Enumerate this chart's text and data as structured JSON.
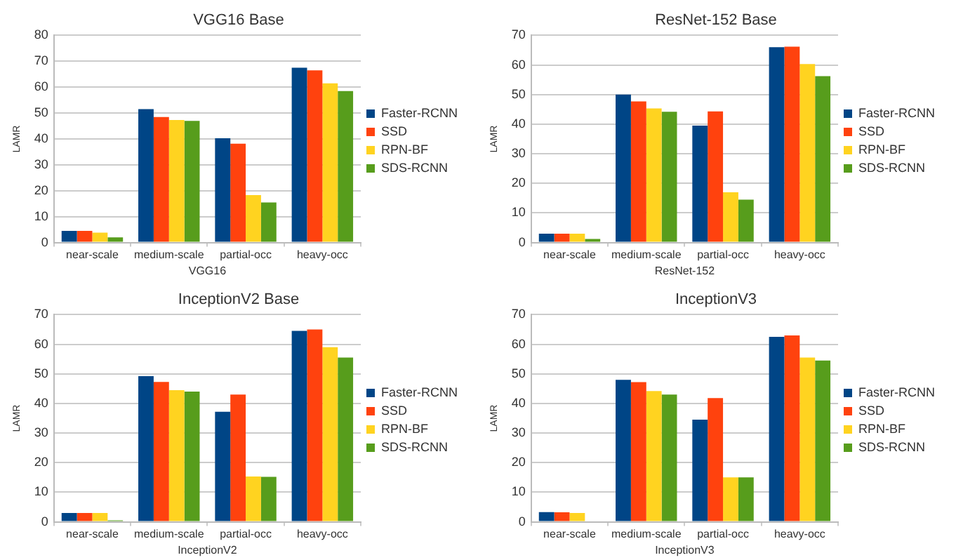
{
  "chart_data": [
    {
      "type": "bar",
      "title": "VGG16 Base",
      "xlabel": "VGG16",
      "ylabel": "LAMR",
      "categories": [
        "near-scale",
        "medium-scale",
        "partial-occ",
        "heavy-occ"
      ],
      "ylim": [
        0,
        80
      ],
      "yticks": [
        0,
        10,
        20,
        30,
        40,
        50,
        60,
        70,
        80
      ],
      "grid": "y",
      "legend": "right",
      "series": [
        {
          "name": "Faster-RCNN",
          "color": "#004586",
          "values": [
            4.5,
            51.5,
            40.3,
            67.5
          ]
        },
        {
          "name": "SSD",
          "color": "#ff420e",
          "values": [
            4.5,
            48.5,
            38.2,
            66.5
          ]
        },
        {
          "name": "RPN-BF",
          "color": "#ffd320",
          "values": [
            3.8,
            47.3,
            18.3,
            61.5
          ]
        },
        {
          "name": "SDS-RCNN",
          "color": "#579d1c",
          "values": [
            2,
            47,
            15.5,
            58.5
          ]
        }
      ]
    },
    {
      "type": "bar",
      "title": "ResNet-152 Base",
      "xlabel": "ResNet-152",
      "ylabel": "LAMR",
      "categories": [
        "near-scale",
        "medium-scale",
        "partial-occ",
        "heavy-occ"
      ],
      "ylim": [
        0,
        70
      ],
      "yticks": [
        0,
        10,
        20,
        30,
        40,
        50,
        60,
        70
      ],
      "grid": "y",
      "legend": "right",
      "series": [
        {
          "name": "Faster-RCNN",
          "color": "#004586",
          "values": [
            3,
            50,
            39.5,
            66
          ]
        },
        {
          "name": "SSD",
          "color": "#ff420e",
          "values": [
            3,
            47.7,
            44.3,
            66.2
          ]
        },
        {
          "name": "RPN-BF",
          "color": "#ffd320",
          "values": [
            3,
            45.3,
            17,
            60.3
          ]
        },
        {
          "name": "SDS-RCNN",
          "color": "#579d1c",
          "values": [
            1.2,
            44.2,
            14.5,
            56.2
          ]
        }
      ]
    },
    {
      "type": "bar",
      "title": "InceptionV2 Base",
      "xlabel": "InceptionV2",
      "ylabel": "LAMR",
      "categories": [
        "near-scale",
        "medium-scale",
        "partial-occ",
        "heavy-occ"
      ],
      "ylim": [
        0,
        70
      ],
      "yticks": [
        0,
        10,
        20,
        30,
        40,
        50,
        60,
        70
      ],
      "grid": "y",
      "legend": "right",
      "series": [
        {
          "name": "Faster-RCNN",
          "color": "#004586",
          "values": [
            3,
            49.2,
            37.2,
            64.5
          ]
        },
        {
          "name": "SSD",
          "color": "#ff420e",
          "values": [
            3,
            47.3,
            43,
            65
          ]
        },
        {
          "name": "RPN-BF",
          "color": "#ffd320",
          "values": [
            3,
            44.5,
            15.3,
            59
          ]
        },
        {
          "name": "SDS-RCNN",
          "color": "#579d1c",
          "values": [
            0.5,
            44,
            15.2,
            55.5
          ]
        }
      ]
    },
    {
      "type": "bar",
      "title": "InceptionV3",
      "xlabel": "InceptionV3",
      "ylabel": "LAMR",
      "categories": [
        "near-scale",
        "medium-scale",
        "partial-occ",
        "heavy-occ"
      ],
      "ylim": [
        0,
        70
      ],
      "yticks": [
        0,
        10,
        20,
        30,
        40,
        50,
        60,
        70
      ],
      "grid": "y",
      "legend": "right",
      "series": [
        {
          "name": "Faster-RCNN",
          "color": "#004586",
          "values": [
            3.3,
            48,
            34.5,
            62.5
          ]
        },
        {
          "name": "SSD",
          "color": "#ff420e",
          "values": [
            3.2,
            47.2,
            41.8,
            63
          ]
        },
        {
          "name": "RPN-BF",
          "color": "#ffd320",
          "values": [
            3,
            44.2,
            15,
            55.5
          ]
        },
        {
          "name": "SDS-RCNN",
          "color": "#579d1c",
          "values": [
            0,
            43,
            15,
            54.5
          ]
        }
      ]
    }
  ]
}
